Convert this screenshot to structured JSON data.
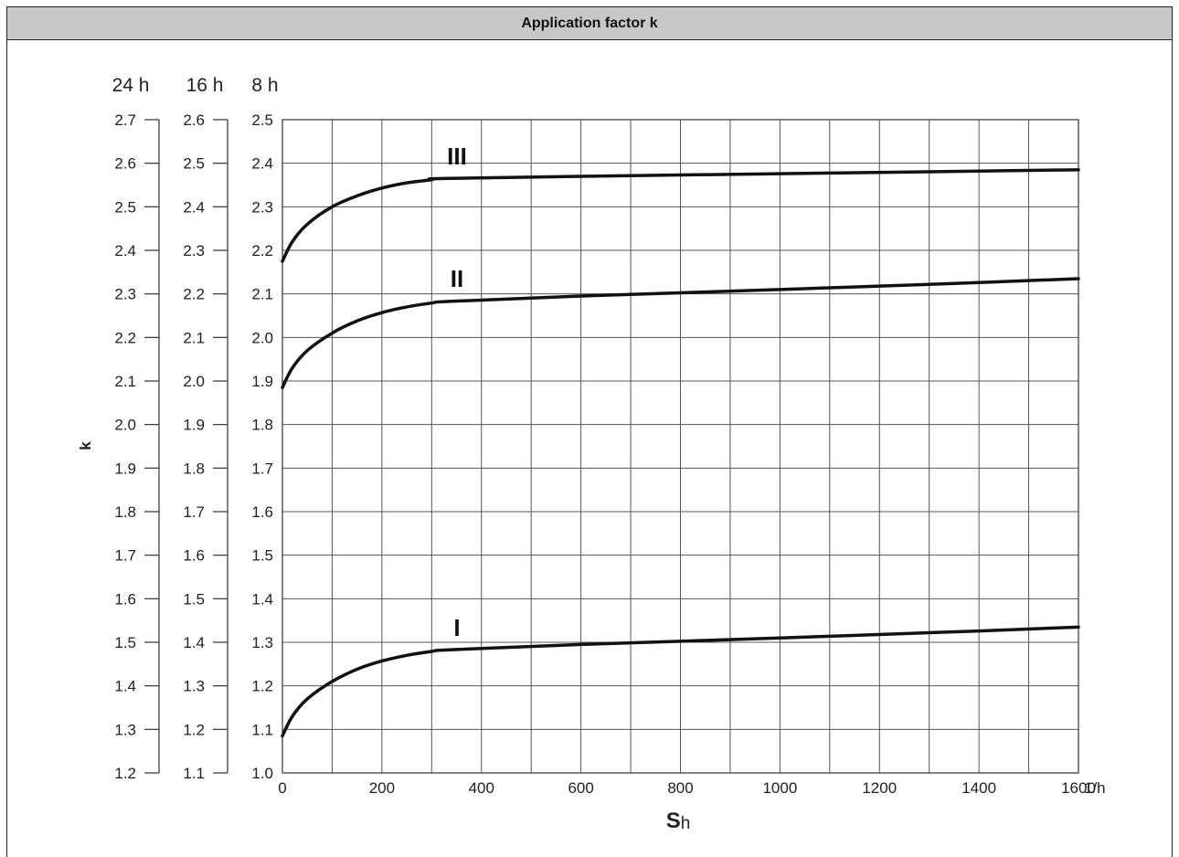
{
  "header": {
    "title": "Application factor k"
  },
  "chart_data": {
    "type": "line",
    "title": "Application factor k",
    "ylabel": "k",
    "xlabel_main": "S",
    "xlabel_sub": "h",
    "x_unit": "1/h",
    "x_ticks": [
      "0",
      "200",
      "400",
      "600",
      "800",
      "1000",
      "1200",
      "1400",
      "1600"
    ],
    "xlim": [
      0,
      1600
    ],
    "grid": true,
    "y_axes": [
      {
        "name": "8 h",
        "ticks": [
          "1.0",
          "1.1",
          "1.2",
          "1.3",
          "1.4",
          "1.5",
          "1.6",
          "1.7",
          "1.8",
          "1.9",
          "2.0",
          "2.1",
          "2.2",
          "2.3",
          "2.4",
          "2.5"
        ],
        "ylim": [
          1.0,
          2.5
        ]
      },
      {
        "name": "16 h",
        "ticks": [
          "1.1",
          "1.2",
          "1.3",
          "1.4",
          "1.5",
          "1.6",
          "1.7",
          "1.8",
          "1.9",
          "2.0",
          "2.1",
          "2.2",
          "2.3",
          "2.4",
          "2.5",
          "2.6"
        ],
        "ylim": [
          1.1,
          2.6
        ]
      },
      {
        "name": "24 h",
        "ticks": [
          "1.2",
          "1.3",
          "1.4",
          "1.5",
          "1.6",
          "1.7",
          "1.8",
          "1.9",
          "2.0",
          "2.1",
          "2.2",
          "2.3",
          "2.4",
          "2.5",
          "2.6",
          "2.7"
        ],
        "ylim": [
          1.2,
          2.7
        ]
      }
    ],
    "series": [
      {
        "name": "III",
        "x": [
          0,
          20,
          50,
          100,
          150,
          200,
          250,
          300,
          320,
          600,
          1000,
          1400,
          1600
        ],
        "y": [
          2.175,
          2.22,
          2.26,
          2.3,
          2.325,
          2.343,
          2.355,
          2.362,
          2.365,
          2.37,
          2.376,
          2.382,
          2.385
        ]
      },
      {
        "name": "II",
        "x": [
          0,
          20,
          50,
          100,
          150,
          200,
          250,
          300,
          340,
          600,
          1000,
          1400,
          1600
        ],
        "y": [
          1.885,
          1.93,
          1.97,
          2.01,
          2.038,
          2.057,
          2.07,
          2.079,
          2.083,
          2.095,
          2.11,
          2.126,
          2.135
        ]
      },
      {
        "name": "I",
        "x": [
          0,
          20,
          50,
          100,
          150,
          200,
          250,
          300,
          340,
          600,
          1000,
          1400,
          1600
        ],
        "y": [
          1.085,
          1.13,
          1.17,
          1.21,
          1.238,
          1.257,
          1.27,
          1.279,
          1.283,
          1.295,
          1.31,
          1.326,
          1.335
        ]
      }
    ]
  }
}
